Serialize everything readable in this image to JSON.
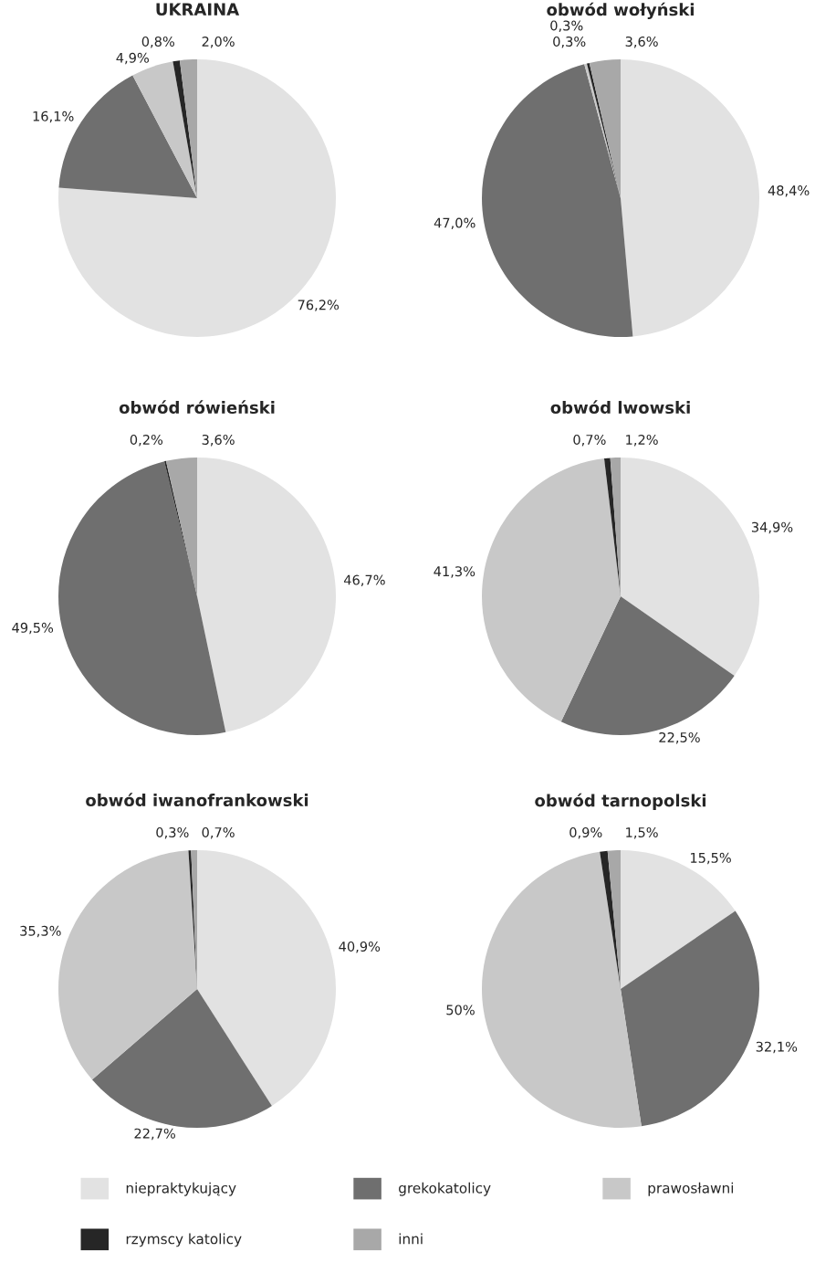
{
  "chart_data": [
    {
      "type": "pie",
      "title": "UKRAINA",
      "categories": [
        "niepraktykujący",
        "grekokatolicy",
        "prawosławni",
        "rzymscy katolicy",
        "inni"
      ],
      "colors": [
        "#e2e2e2",
        "#6f6f6f",
        "#c8c8c8",
        "#262626",
        "#a8a8a8"
      ],
      "values": [
        76.2,
        16.1,
        4.9,
        0.8,
        2.0
      ],
      "value_labels": [
        "76,2%",
        "16,1%",
        "4,9%",
        "0,8%",
        "2,0%"
      ],
      "legend": "bottom"
    },
    {
      "type": "pie",
      "title": "obwód wołyński",
      "colors": [
        "#e2e2e2",
        "#6f6f6f",
        "#c8c8c8",
        "#262626",
        "#a8a8a8"
      ],
      "values": [
        48.4,
        47.0,
        0.3,
        0.3,
        3.6
      ],
      "value_labels": [
        "48,4%",
        "47,0%",
        "0,3%",
        "0,3%",
        "3,6%"
      ]
    },
    {
      "type": "pie",
      "title": "obwód rówieński",
      "colors": [
        "#e2e2e2",
        "#6f6f6f",
        "#c8c8c8",
        "#262626",
        "#a8a8a8"
      ],
      "values": [
        46.7,
        49.5,
        0,
        0.2,
        3.6
      ],
      "value_labels": [
        "46,7%",
        "49,5%",
        null,
        "0,2%",
        "3,6%"
      ]
    },
    {
      "type": "pie",
      "title": "obwód lwowski",
      "colors": [
        "#e2e2e2",
        "#6f6f6f",
        "#c8c8c8",
        "#262626",
        "#a8a8a8"
      ],
      "values": [
        34.9,
        22.5,
        41.3,
        0.7,
        1.2
      ],
      "value_labels": [
        "34,9%",
        "22,5%",
        "41,3%",
        "0,7%",
        "1,2%"
      ]
    },
    {
      "type": "pie",
      "title": "obwód iwanofrankowski",
      "colors": [
        "#e2e2e2",
        "#6f6f6f",
        "#c8c8c8",
        "#262626",
        "#a8a8a8"
      ],
      "values": [
        40.9,
        22.7,
        35.3,
        0.3,
        0.7
      ],
      "value_labels": [
        "40,9%",
        "22,7%",
        "35,3%",
        "0,3%",
        "0,7%"
      ]
    },
    {
      "type": "pie",
      "title": "obwód tarnopolski",
      "colors": [
        "#e2e2e2",
        "#6f6f6f",
        "#c8c8c8",
        "#262626",
        "#a8a8a8"
      ],
      "values": [
        15.5,
        32.1,
        50,
        0.9,
        1.5
      ],
      "value_labels": [
        "15,5%",
        "32,1%",
        "50%",
        "0,9%",
        "1,5%"
      ]
    }
  ]
}
